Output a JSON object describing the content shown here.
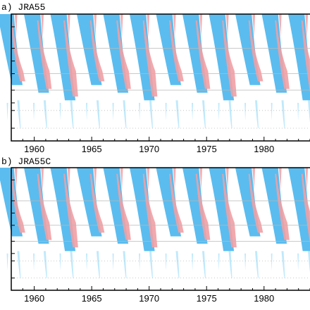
{
  "chart_data": [
    {
      "type": "heatmap",
      "title": "a) JRA55",
      "xlabel": "",
      "ylabel": "",
      "x_ticks": [
        "1960",
        "1965",
        "1970",
        "1975",
        "1980"
      ],
      "x_range": [
        1958,
        1984
      ],
      "y_range": [
        0,
        1
      ],
      "grid": true,
      "features": {
        "easterly_descending_bands": "blue",
        "westerly_descending_bands": "red",
        "cycle_period_years": 2.3
      }
    },
    {
      "type": "heatmap",
      "title": "b) JRA55C",
      "xlabel": "",
      "ylabel": "",
      "x_ticks": [
        "1960",
        "1965",
        "1970",
        "1975",
        "1980"
      ],
      "x_range": [
        1958,
        1984
      ],
      "y_range": [
        0,
        1
      ],
      "grid": true,
      "features": {
        "easterly_descending_bands": "blue",
        "westerly_descending_bands": "red",
        "cycle_period_years": 2.3
      }
    }
  ],
  "colors": {
    "easterly": "#52b8ee",
    "easterly_light": "#bfe9fb",
    "westerly": "#f0a0a4",
    "grid": "#b9b9b9",
    "frame": "#000000"
  }
}
